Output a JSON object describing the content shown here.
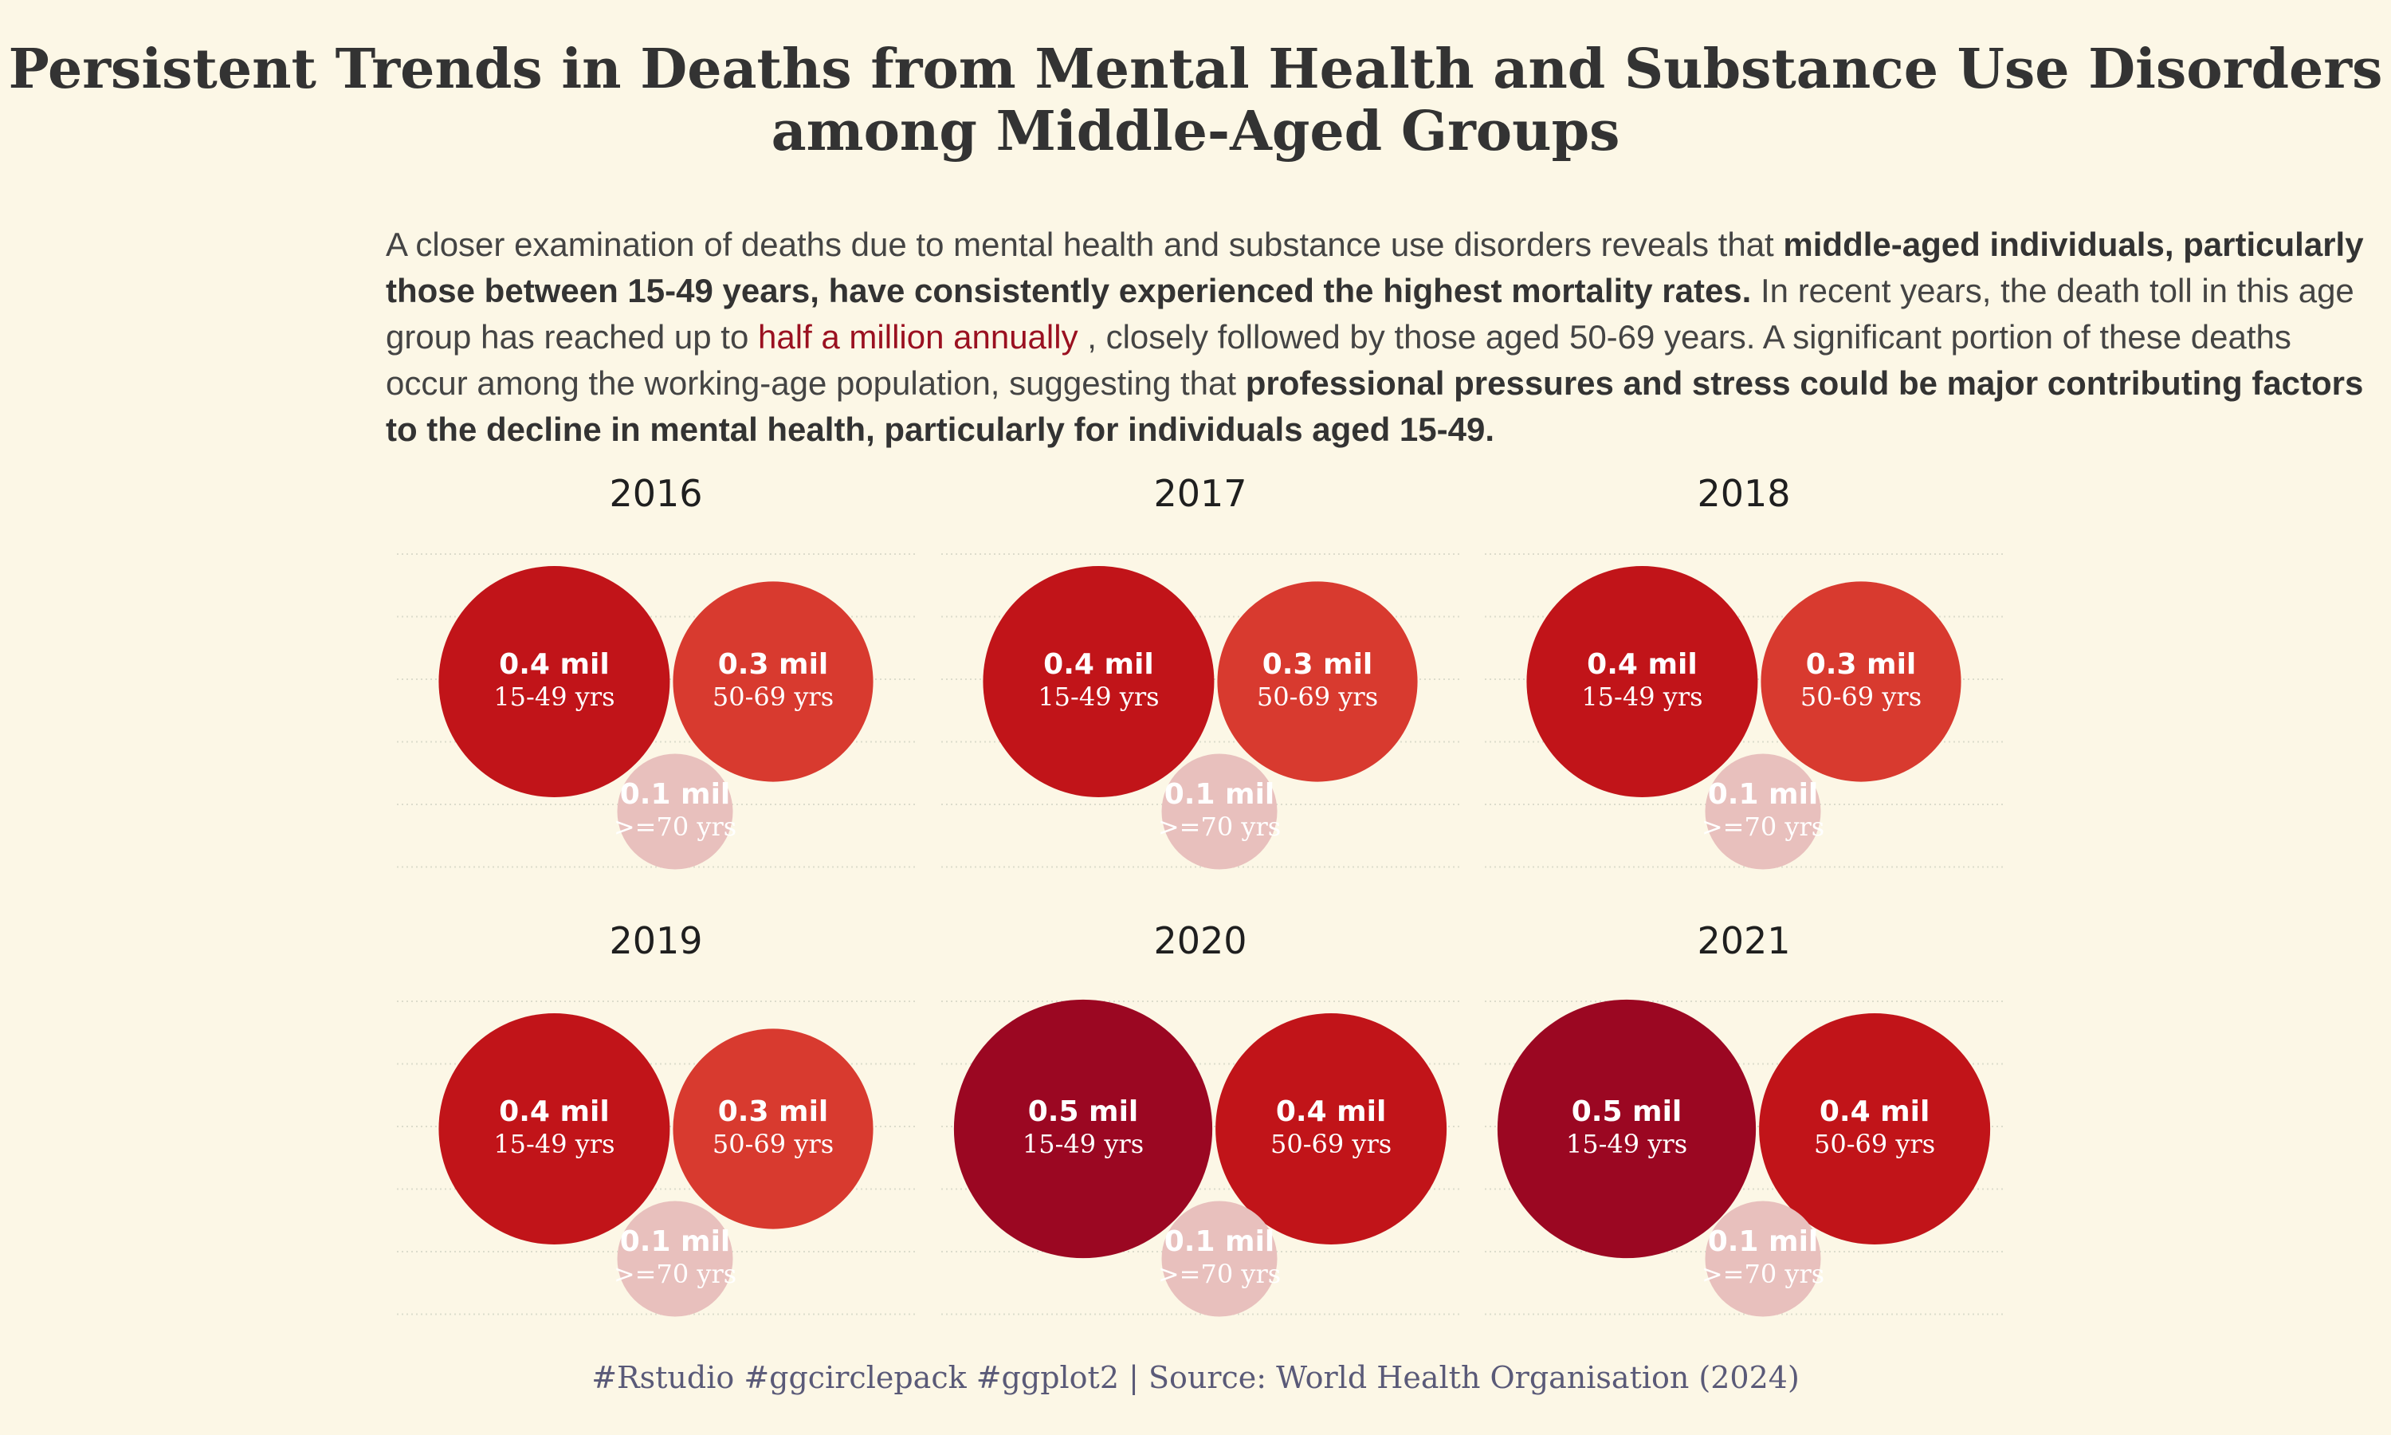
{
  "title_line1": "Persistent Trends in Deaths from Mental Health and Substance Use Disorders",
  "title_line2": "among Middle-Aged Groups",
  "subtitle": {
    "p1": "A closer examination of deaths due to mental health and substance use disorders reveals that ",
    "b1": "middle-aged individuals, particularly those between 15-49 years, have consistently experienced the highest mortality rates.",
    "p2": " In recent years, the death toll in this age group has reached up to ",
    "hl": "half a million annually",
    "p3": " , closely followed by those aged 50-69 years. A significant portion of these deaths occur among the working-age population, suggesting that ",
    "b2": "professional pressures and stress could be major contributing factors to the decline in mental health, particularly for individuals aged 15-49."
  },
  "caption": "#Rstudio #ggcirclepack #ggplot2 | Source: World Health Organisation (2024)",
  "colors": {
    "level_0_5": "#9b0722",
    "level_0_4": "#c11419",
    "level_0_3": "#d83a2f",
    "level_0_1": "#e8c0bd"
  },
  "chart_data": {
    "type": "circle-pack",
    "unit": "mil",
    "panels": [
      {
        "year": "2016",
        "groups": [
          {
            "age": "15-49 yrs",
            "value": 0.4,
            "label": "0.4 mil"
          },
          {
            "age": "50-69 yrs",
            "value": 0.3,
            "label": "0.3 mil"
          },
          {
            "age": ">=70 yrs",
            "value": 0.1,
            "label": "0.1 mil"
          }
        ]
      },
      {
        "year": "2017",
        "groups": [
          {
            "age": "15-49 yrs",
            "value": 0.4,
            "label": "0.4 mil"
          },
          {
            "age": "50-69 yrs",
            "value": 0.3,
            "label": "0.3 mil"
          },
          {
            "age": ">=70 yrs",
            "value": 0.1,
            "label": "0.1 mil"
          }
        ]
      },
      {
        "year": "2018",
        "groups": [
          {
            "age": "15-49 yrs",
            "value": 0.4,
            "label": "0.4 mil"
          },
          {
            "age": "50-69 yrs",
            "value": 0.3,
            "label": "0.3 mil"
          },
          {
            "age": ">=70 yrs",
            "value": 0.1,
            "label": "0.1 mil"
          }
        ]
      },
      {
        "year": "2019",
        "groups": [
          {
            "age": "15-49 yrs",
            "value": 0.4,
            "label": "0.4 mil"
          },
          {
            "age": "50-69 yrs",
            "value": 0.3,
            "label": "0.3 mil"
          },
          {
            "age": ">=70 yrs",
            "value": 0.1,
            "label": "0.1 mil"
          }
        ]
      },
      {
        "year": "2020",
        "groups": [
          {
            "age": "15-49 yrs",
            "value": 0.5,
            "label": "0.5 mil"
          },
          {
            "age": "50-69 yrs",
            "value": 0.4,
            "label": "0.4 mil"
          },
          {
            "age": ">=70 yrs",
            "value": 0.1,
            "label": "0.1 mil"
          }
        ]
      },
      {
        "year": "2021",
        "groups": [
          {
            "age": "15-49 yrs",
            "value": 0.5,
            "label": "0.5 mil"
          },
          {
            "age": "50-69 yrs",
            "value": 0.4,
            "label": "0.4 mil"
          },
          {
            "age": ">=70 yrs",
            "value": 0.1,
            "label": "0.1 mil"
          }
        ]
      }
    ]
  }
}
